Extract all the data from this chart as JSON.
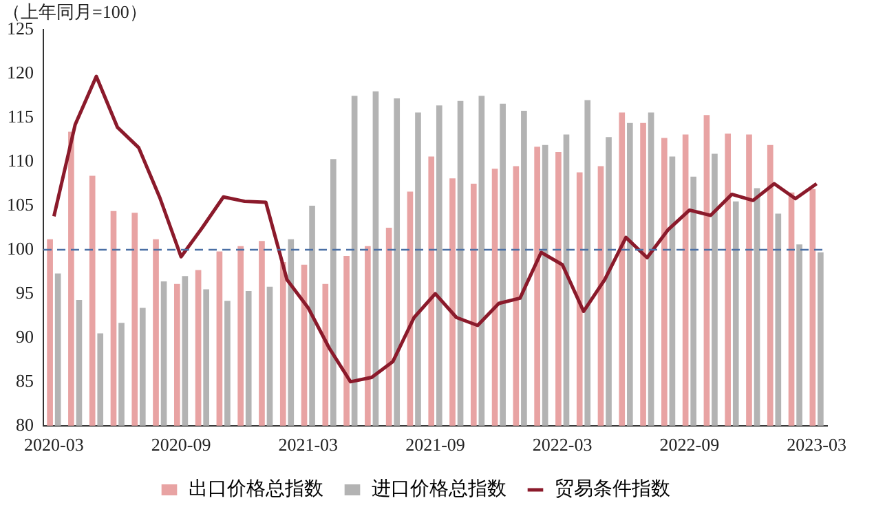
{
  "chart_data": {
    "type": "bar",
    "title": "（上年同月=100）",
    "categories": [
      "2020-03",
      null,
      null,
      null,
      null,
      null,
      "2020-09",
      null,
      null,
      null,
      null,
      null,
      "2021-03",
      null,
      null,
      null,
      null,
      null,
      "2021-09",
      null,
      null,
      null,
      null,
      null,
      "2022-03",
      null,
      null,
      null,
      null,
      null,
      "2022-09",
      null,
      null,
      null,
      null,
      null,
      "2023-03"
    ],
    "series": [
      {
        "name": "出口价格总指数",
        "color": "#e8a3a3",
        "values": [
          101.2,
          113.4,
          108.4,
          104.4,
          104.2,
          101.2,
          96.1,
          97.7,
          99.8,
          100.4,
          101.0,
          98.6,
          98.3,
          96.1,
          99.3,
          100.4,
          102.5,
          106.6,
          110.6,
          108.1,
          107.5,
          109.2,
          109.5,
          111.7,
          111.1,
          108.8,
          109.5,
          115.6,
          114.4,
          112.7,
          113.1,
          115.3,
          113.2,
          113.1,
          111.9,
          106.5,
          106.9
        ]
      },
      {
        "name": "进口价格总指数",
        "color": "#b3b3b3",
        "values": [
          97.3,
          94.3,
          90.5,
          91.7,
          93.4,
          96.4,
          97.0,
          95.5,
          94.2,
          95.3,
          95.8,
          101.2,
          105.0,
          110.3,
          117.5,
          118.0,
          117.2,
          115.6,
          116.4,
          116.9,
          117.5,
          116.6,
          115.8,
          111.9,
          113.1,
          117.0,
          112.8,
          114.4,
          115.6,
          110.6,
          108.3,
          110.9,
          105.5,
          107.0,
          104.1,
          100.6,
          99.7
        ]
      },
      {
        "name": "贸易条件指数",
        "type": "line",
        "color": "#8b1a2b",
        "values": [
          103.8,
          114.2,
          119.7,
          113.9,
          111.6,
          105.9,
          99.2,
          102.5,
          106.0,
          105.5,
          105.4,
          96.6,
          93.4,
          88.8,
          85.0,
          85.5,
          87.3,
          92.3,
          95.0,
          92.3,
          91.4,
          93.9,
          94.5,
          99.7,
          98.3,
          93.0,
          96.6,
          101.4,
          99.1,
          102.3,
          104.5,
          103.9,
          106.3,
          105.6,
          107.5,
          105.8,
          107.5
        ]
      }
    ],
    "ylim": [
      80,
      125
    ],
    "yticks": [
      125,
      120,
      115,
      110,
      105,
      100,
      95,
      90,
      85,
      80
    ],
    "ref_lines": [
      {
        "axis": "y",
        "value": 100,
        "color": "#4a6fa5",
        "line_style": "dashed"
      }
    ],
    "legend": "bottom",
    "grid": false,
    "marker": "none",
    "line_style": "solid"
  }
}
